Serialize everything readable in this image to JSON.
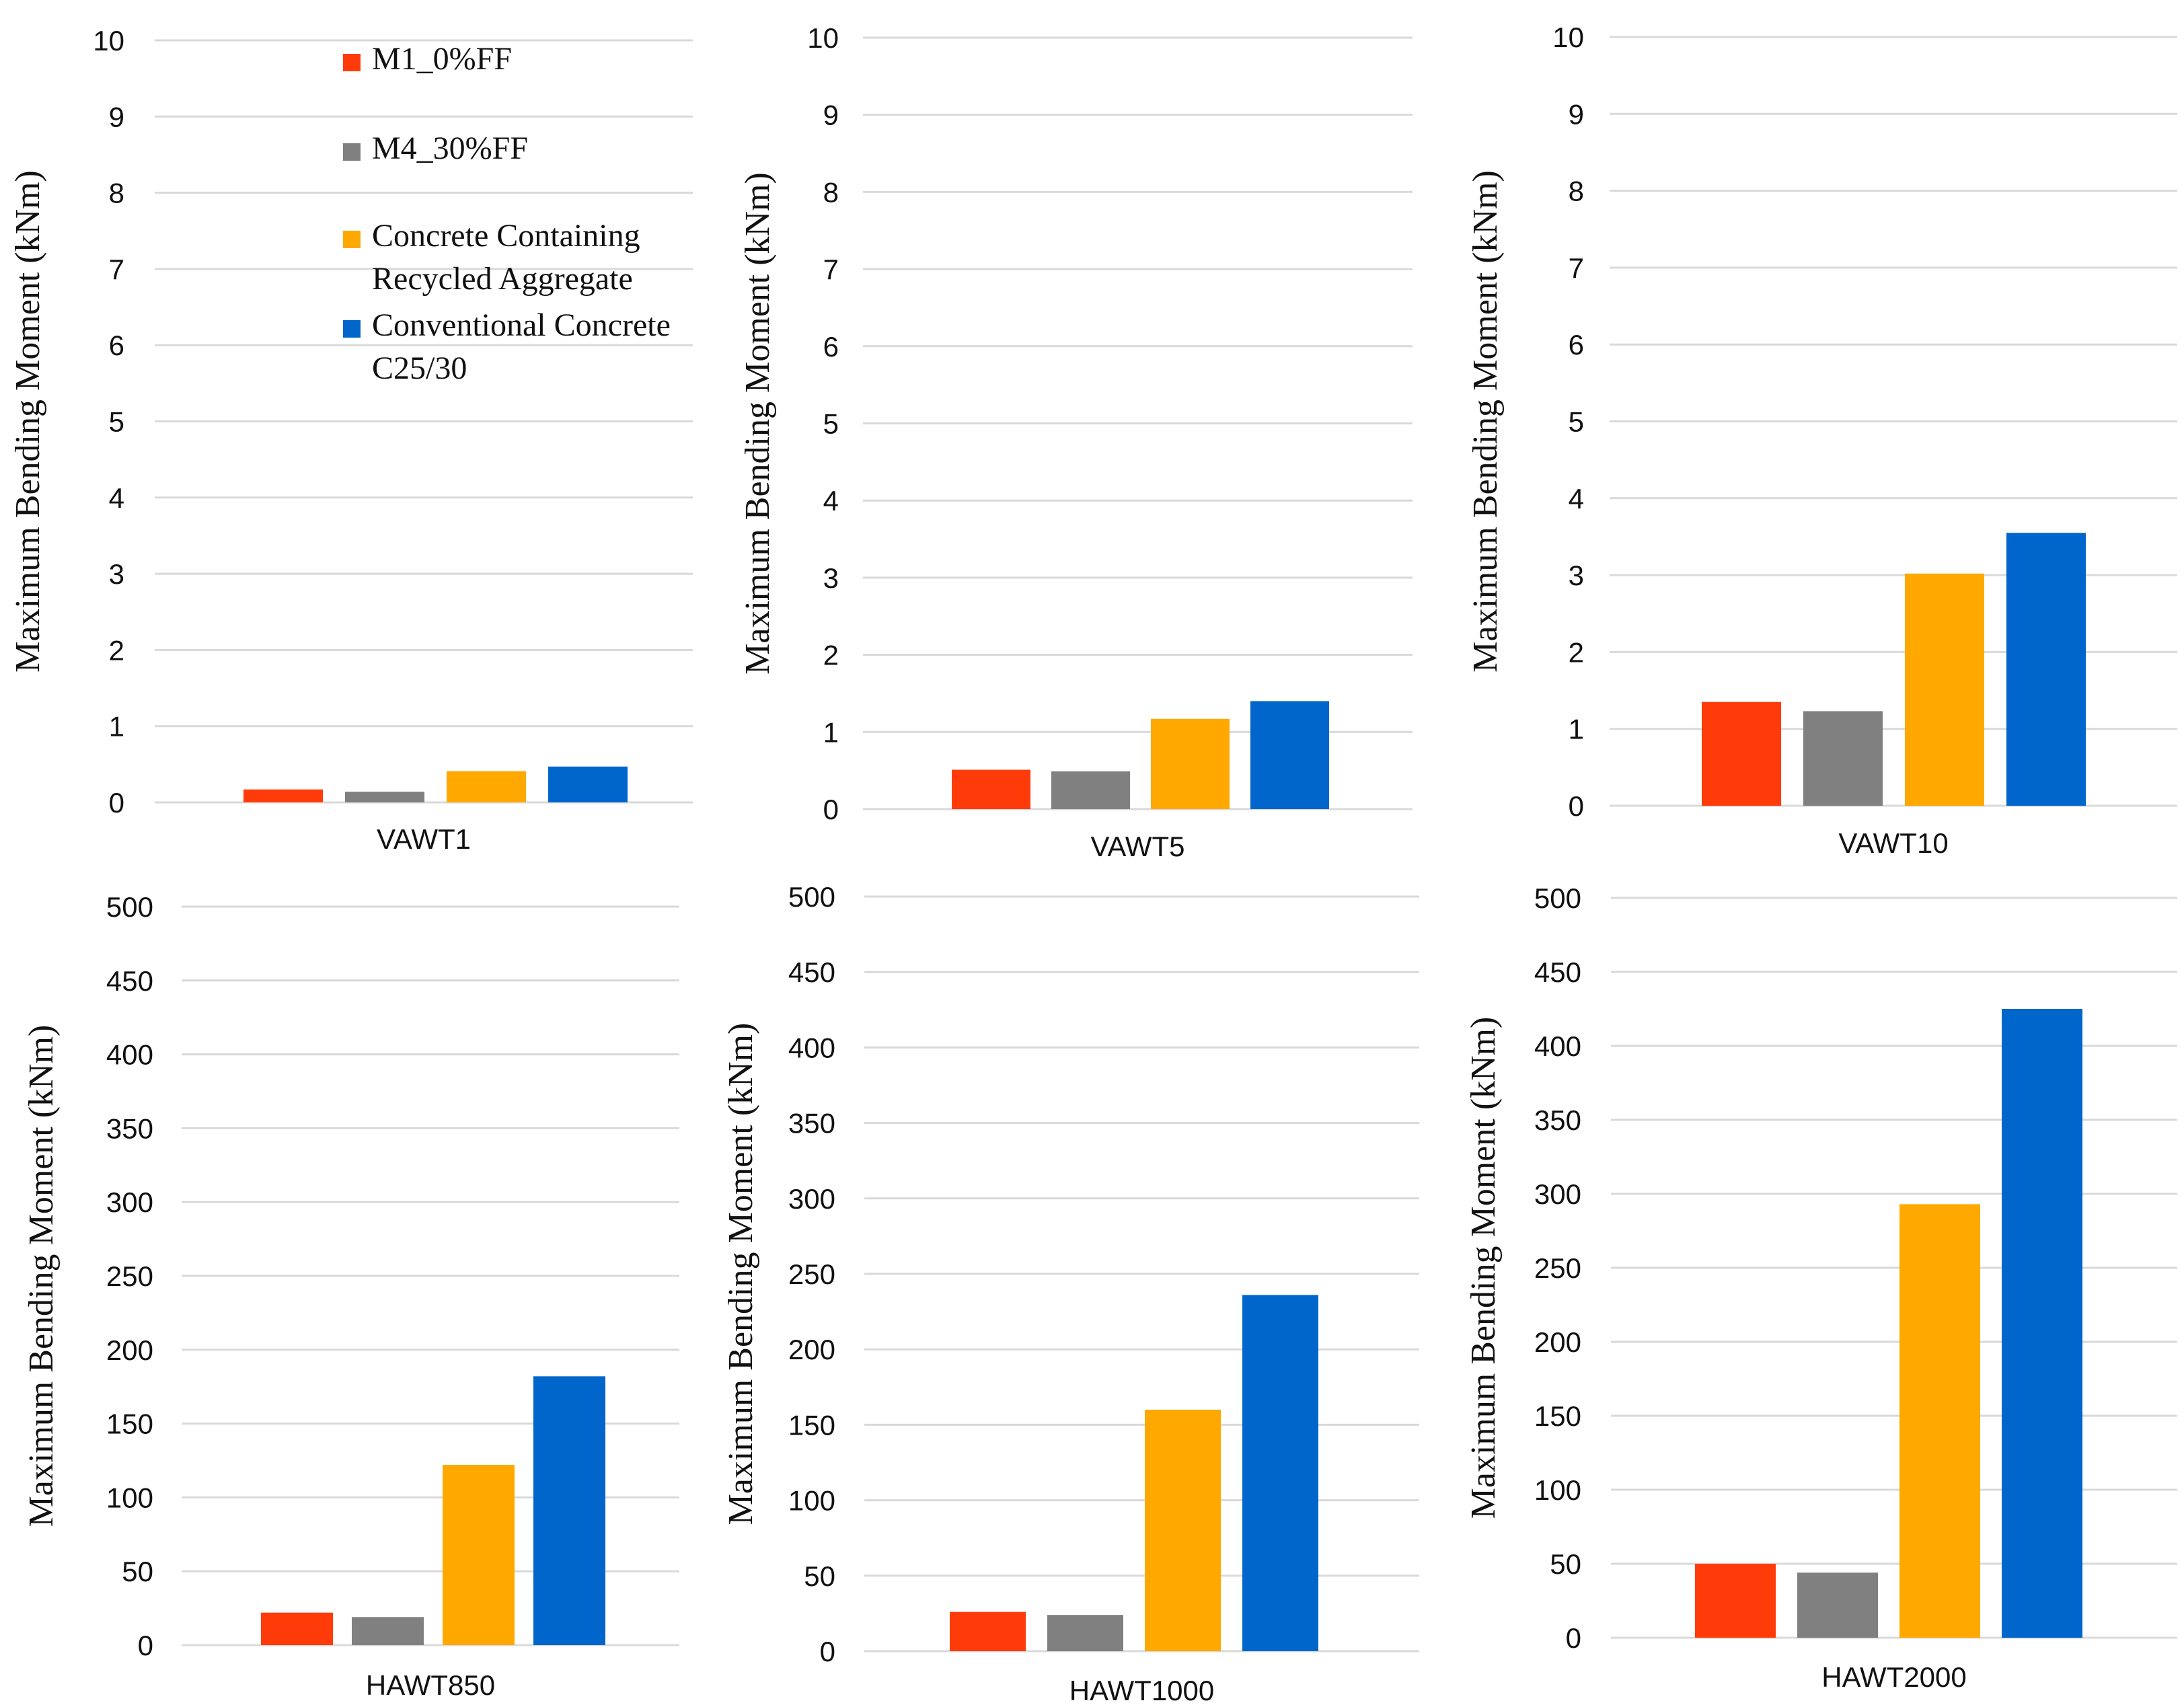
{
  "colors": {
    "m1": "#FF3B0A",
    "m4": "#808080",
    "recycled": "#FFA800",
    "conventional": "#0066CC",
    "grid": "#d9d9d9",
    "text": "#111111"
  },
  "legend": [
    {
      "series_index": 0,
      "lines": [
        "M1_0%FF"
      ]
    },
    {
      "series_index": 1,
      "lines": [
        "M4_30%FF"
      ]
    },
    {
      "series_index": 2,
      "lines": [
        "Concrete Containing",
        "Recycled Aggregate"
      ]
    },
    {
      "series_index": 3,
      "lines": [
        "Conventional Concrete",
        "C25/30"
      ]
    }
  ],
  "chart_data": [
    {
      "type": "bar",
      "categories": [
        "VAWT1"
      ],
      "series": [
        {
          "name": "M1_0%FF",
          "values": [
            0.17
          ]
        },
        {
          "name": "M4_30%FF",
          "values": [
            0.14
          ]
        },
        {
          "name": "Concrete Containing Recycled Aggregate",
          "values": [
            0.41
          ]
        },
        {
          "name": "Conventional Concrete C25/30",
          "values": [
            0.47
          ]
        }
      ],
      "title": "",
      "xlabel": "VAWT1",
      "ylabel": "Maximum Bending Moment (kNm)",
      "ylim": [
        0,
        10
      ],
      "yticks": [
        "0",
        "1",
        "2",
        "3",
        "4",
        "5",
        "6",
        "7",
        "8",
        "9",
        "10"
      ],
      "grid": true,
      "legend": "inside top-right"
    },
    {
      "type": "bar",
      "categories": [
        "VAWT5"
      ],
      "series": [
        {
          "name": "M1_0%FF",
          "values": [
            0.51
          ]
        },
        {
          "name": "M4_30%FF",
          "values": [
            0.49
          ]
        },
        {
          "name": "Concrete Containing Recycled Aggregate",
          "values": [
            1.17
          ]
        },
        {
          "name": "Conventional Concrete C25/30",
          "values": [
            1.4
          ]
        }
      ],
      "title": "",
      "xlabel": "VAWT5",
      "ylabel": "Maximum Bending Moment (kNm)",
      "ylim": [
        0,
        10
      ],
      "yticks": [
        "0",
        "1",
        "2",
        "3",
        "4",
        "5",
        "6",
        "7",
        "8",
        "9",
        "10"
      ],
      "grid": true
    },
    {
      "type": "bar",
      "categories": [
        "VAWT10"
      ],
      "series": [
        {
          "name": "M1_0%FF",
          "values": [
            1.35
          ]
        },
        {
          "name": "M4_30%FF",
          "values": [
            1.23
          ]
        },
        {
          "name": "Concrete Containing Recycled Aggregate",
          "values": [
            3.02
          ]
        },
        {
          "name": "Conventional Concrete C25/30",
          "values": [
            3.55
          ]
        }
      ],
      "title": "",
      "xlabel": "VAWT10",
      "ylabel": "Maximum Bending Moment (kNm)",
      "ylim": [
        0,
        10
      ],
      "yticks": [
        "0",
        "1",
        "2",
        "3",
        "4",
        "5",
        "6",
        "7",
        "8",
        "9",
        "10"
      ],
      "grid": true
    },
    {
      "type": "bar",
      "categories": [
        "HAWT850"
      ],
      "series": [
        {
          "name": "M1_0%FF",
          "values": [
            22
          ]
        },
        {
          "name": "M4_30%FF",
          "values": [
            19
          ]
        },
        {
          "name": "Concrete Containing Recycled Aggregate",
          "values": [
            122
          ]
        },
        {
          "name": "Conventional Concrete C25/30",
          "values": [
            182
          ]
        }
      ],
      "title": "",
      "xlabel": "HAWT850",
      "ylabel": "Maximum Bending Moment (kNm)",
      "ylim": [
        0,
        500
      ],
      "yticks": [
        "0",
        "50",
        "100",
        "150",
        "200",
        "250",
        "300",
        "350",
        "400",
        "450",
        "500"
      ],
      "grid": true
    },
    {
      "type": "bar",
      "categories": [
        "HAWT1000"
      ],
      "series": [
        {
          "name": "M1_0%FF",
          "values": [
            26
          ]
        },
        {
          "name": "M4_30%FF",
          "values": [
            24
          ]
        },
        {
          "name": "Concrete Containing Recycled Aggregate",
          "values": [
            160
          ]
        },
        {
          "name": "Conventional Concrete C25/30",
          "values": [
            236
          ]
        }
      ],
      "title": "",
      "xlabel": "HAWT1000",
      "ylabel": "Maximum Bending Moment (kNm)",
      "ylim": [
        0,
        500
      ],
      "yticks": [
        "0",
        "50",
        "100",
        "150",
        "200",
        "250",
        "300",
        "350",
        "400",
        "450",
        "500"
      ],
      "grid": true
    },
    {
      "type": "bar",
      "categories": [
        "HAWT2000"
      ],
      "series": [
        {
          "name": "M1_0%FF",
          "values": [
            50
          ]
        },
        {
          "name": "M4_30%FF",
          "values": [
            44
          ]
        },
        {
          "name": "Concrete Containing Recycled Aggregate",
          "values": [
            293
          ]
        },
        {
          "name": "Conventional Concrete C25/30",
          "values": [
            425
          ]
        }
      ],
      "title": "",
      "xlabel": "HAWT2000",
      "ylabel": "Maximum Bending Moment (kNm)",
      "ylim": [
        0,
        500
      ],
      "yticks": [
        "0",
        "50",
        "100",
        "150",
        "200",
        "250",
        "300",
        "350",
        "400",
        "450",
        "500"
      ],
      "grid": true
    }
  ]
}
